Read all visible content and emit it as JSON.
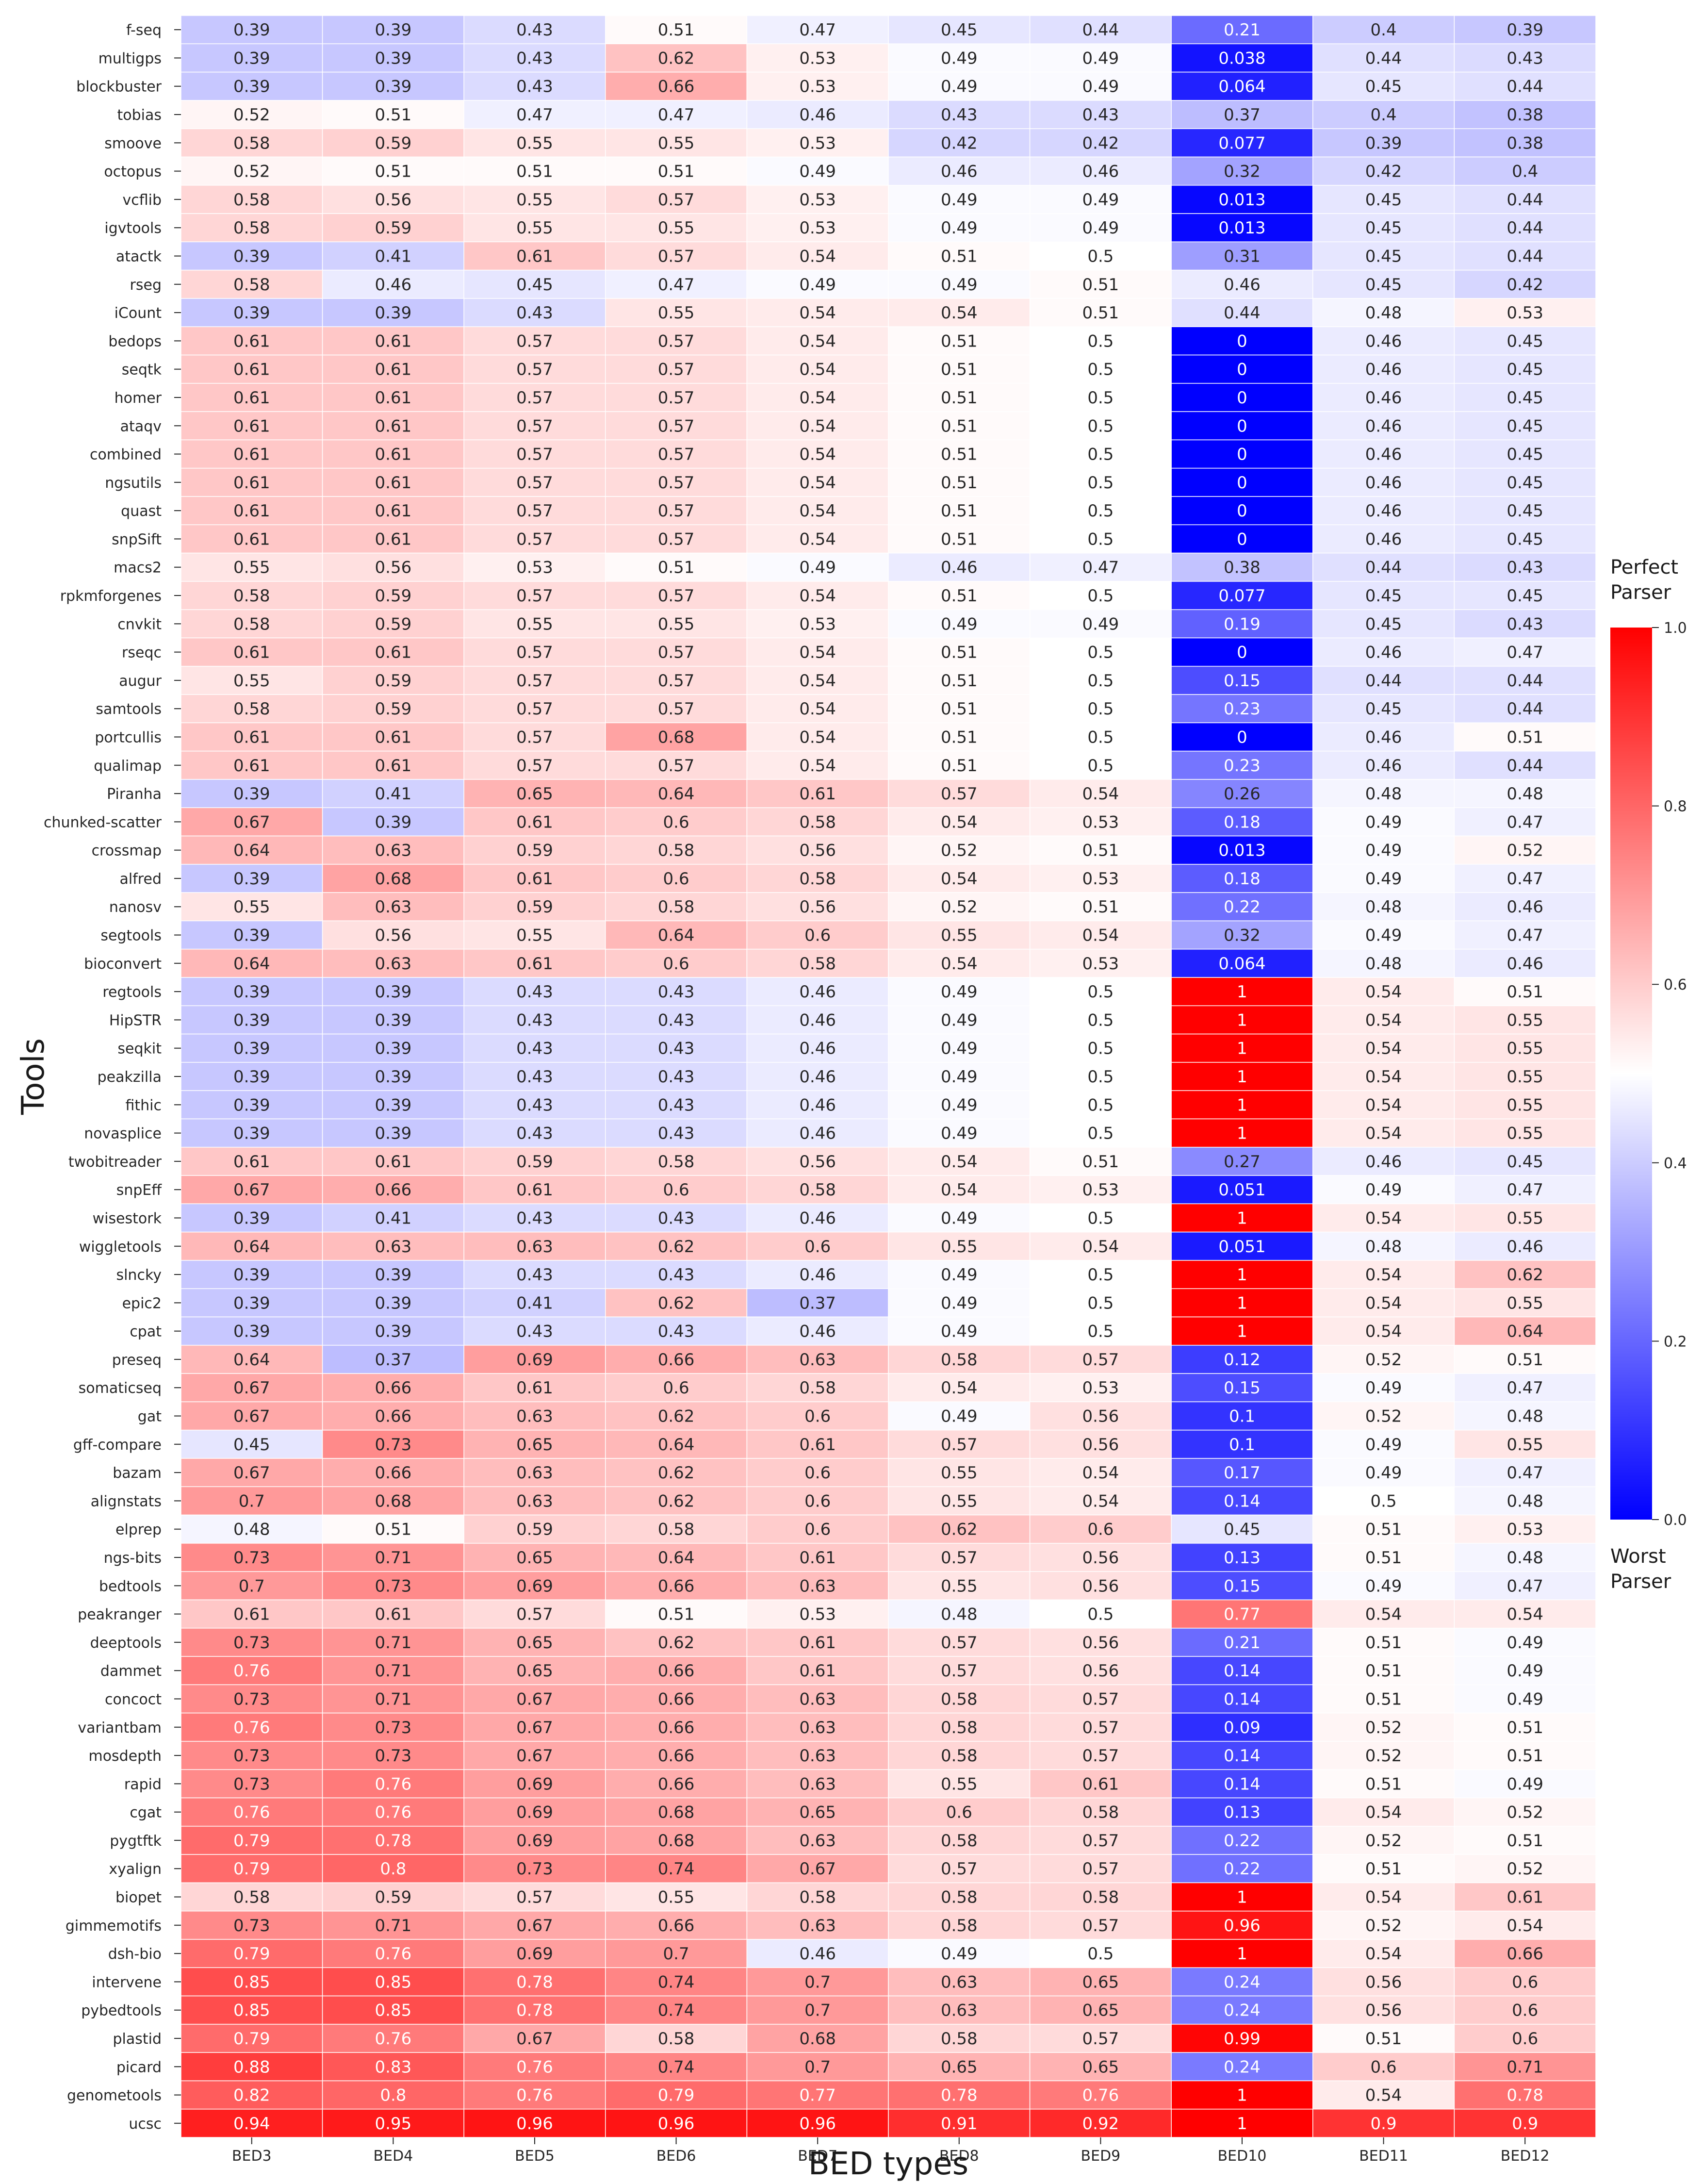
{
  "chart_data": {
    "type": "heatmap",
    "xlabel": "BED types",
    "ylabel": "Tools",
    "columns": [
      "BED3",
      "BED4",
      "BED5",
      "BED6",
      "BED7",
      "BED8",
      "BED9",
      "BED10",
      "BED11",
      "BED12"
    ],
    "rows": [
      "f-seq",
      "multigps",
      "blockbuster",
      "tobias",
      "smoove",
      "octopus",
      "vcflib",
      "igvtools",
      "atactk",
      "rseg",
      "iCount",
      "bedops",
      "seqtk",
      "homer",
      "ataqv",
      "combined",
      "ngsutils",
      "quast",
      "snpSift",
      "macs2",
      "rpkmforgenes",
      "cnvkit",
      "rseqc",
      "augur",
      "samtools",
      "portcullis",
      "qualimap",
      "Piranha",
      "chunked-scatter",
      "crossmap",
      "alfred",
      "nanosv",
      "segtools",
      "bioconvert",
      "regtools",
      "HipSTR",
      "seqkit",
      "peakzilla",
      "fithic",
      "novasplice",
      "twobitreader",
      "snpEff",
      "wisestork",
      "wiggletools",
      "slncky",
      "epic2",
      "cpat",
      "preseq",
      "somaticseq",
      "gat",
      "gff-compare",
      "bazam",
      "alignstats",
      "elprep",
      "ngs-bits",
      "bedtools",
      "peakranger",
      "deeptools",
      "dammet",
      "concoct",
      "variantbam",
      "mosdepth",
      "rapid",
      "cgat",
      "pygtftk",
      "xyalign",
      "biopet",
      "gimmemotifs",
      "dsh-bio",
      "intervene",
      "pybedtools",
      "plastid",
      "picard",
      "genometools",
      "ucsc"
    ],
    "values": [
      [
        0.39,
        0.39,
        0.43,
        0.51,
        0.47,
        0.45,
        0.44,
        0.21,
        0.4,
        0.39
      ],
      [
        0.39,
        0.39,
        0.43,
        0.62,
        0.53,
        0.49,
        0.49,
        0.038,
        0.44,
        0.43
      ],
      [
        0.39,
        0.39,
        0.43,
        0.66,
        0.53,
        0.49,
        0.49,
        0.064,
        0.45,
        0.44
      ],
      [
        0.52,
        0.51,
        0.47,
        0.47,
        0.46,
        0.43,
        0.43,
        0.37,
        0.4,
        0.38
      ],
      [
        0.58,
        0.59,
        0.55,
        0.55,
        0.53,
        0.42,
        0.42,
        0.077,
        0.39,
        0.38
      ],
      [
        0.52,
        0.51,
        0.51,
        0.51,
        0.49,
        0.46,
        0.46,
        0.32,
        0.42,
        0.4
      ],
      [
        0.58,
        0.56,
        0.55,
        0.57,
        0.53,
        0.49,
        0.49,
        0.013,
        0.45,
        0.44
      ],
      [
        0.58,
        0.59,
        0.55,
        0.55,
        0.53,
        0.49,
        0.49,
        0.013,
        0.45,
        0.44
      ],
      [
        0.39,
        0.41,
        0.61,
        0.57,
        0.54,
        0.51,
        0.5,
        0.31,
        0.45,
        0.44
      ],
      [
        0.58,
        0.46,
        0.45,
        0.47,
        0.49,
        0.49,
        0.51,
        0.46,
        0.45,
        0.42
      ],
      [
        0.39,
        0.39,
        0.43,
        0.55,
        0.54,
        0.54,
        0.51,
        0.44,
        0.48,
        0.53
      ],
      [
        0.61,
        0.61,
        0.57,
        0.57,
        0.54,
        0.51,
        0.5,
        0,
        0.46,
        0.45
      ],
      [
        0.61,
        0.61,
        0.57,
        0.57,
        0.54,
        0.51,
        0.5,
        0,
        0.46,
        0.45
      ],
      [
        0.61,
        0.61,
        0.57,
        0.57,
        0.54,
        0.51,
        0.5,
        0,
        0.46,
        0.45
      ],
      [
        0.61,
        0.61,
        0.57,
        0.57,
        0.54,
        0.51,
        0.5,
        0,
        0.46,
        0.45
      ],
      [
        0.61,
        0.61,
        0.57,
        0.57,
        0.54,
        0.51,
        0.5,
        0,
        0.46,
        0.45
      ],
      [
        0.61,
        0.61,
        0.57,
        0.57,
        0.54,
        0.51,
        0.5,
        0,
        0.46,
        0.45
      ],
      [
        0.61,
        0.61,
        0.57,
        0.57,
        0.54,
        0.51,
        0.5,
        0,
        0.46,
        0.45
      ],
      [
        0.61,
        0.61,
        0.57,
        0.57,
        0.54,
        0.51,
        0.5,
        0,
        0.46,
        0.45
      ],
      [
        0.55,
        0.56,
        0.53,
        0.51,
        0.49,
        0.46,
        0.47,
        0.38,
        0.44,
        0.43
      ],
      [
        0.58,
        0.59,
        0.57,
        0.57,
        0.54,
        0.51,
        0.5,
        0.077,
        0.45,
        0.45
      ],
      [
        0.58,
        0.59,
        0.55,
        0.55,
        0.53,
        0.49,
        0.49,
        0.19,
        0.45,
        0.43
      ],
      [
        0.61,
        0.61,
        0.57,
        0.57,
        0.54,
        0.51,
        0.5,
        0,
        0.46,
        0.47
      ],
      [
        0.55,
        0.59,
        0.57,
        0.57,
        0.54,
        0.51,
        0.5,
        0.15,
        0.44,
        0.44
      ],
      [
        0.58,
        0.59,
        0.57,
        0.57,
        0.54,
        0.51,
        0.5,
        0.23,
        0.45,
        0.44
      ],
      [
        0.61,
        0.61,
        0.57,
        0.68,
        0.54,
        0.51,
        0.5,
        0,
        0.46,
        0.51
      ],
      [
        0.61,
        0.61,
        0.57,
        0.57,
        0.54,
        0.51,
        0.5,
        0.23,
        0.46,
        0.44
      ],
      [
        0.39,
        0.41,
        0.65,
        0.64,
        0.61,
        0.57,
        0.54,
        0.26,
        0.48,
        0.48
      ],
      [
        0.67,
        0.39,
        0.61,
        0.6,
        0.58,
        0.54,
        0.53,
        0.18,
        0.49,
        0.47
      ],
      [
        0.64,
        0.63,
        0.59,
        0.58,
        0.56,
        0.52,
        0.51,
        0.013,
        0.49,
        0.52
      ],
      [
        0.39,
        0.68,
        0.61,
        0.6,
        0.58,
        0.54,
        0.53,
        0.18,
        0.49,
        0.47
      ],
      [
        0.55,
        0.63,
        0.59,
        0.58,
        0.56,
        0.52,
        0.51,
        0.22,
        0.48,
        0.46
      ],
      [
        0.39,
        0.56,
        0.55,
        0.64,
        0.6,
        0.55,
        0.54,
        0.32,
        0.49,
        0.47
      ],
      [
        0.64,
        0.63,
        0.61,
        0.6,
        0.58,
        0.54,
        0.53,
        0.064,
        0.48,
        0.46
      ],
      [
        0.39,
        0.39,
        0.43,
        0.43,
        0.46,
        0.49,
        0.5,
        1,
        0.54,
        0.51
      ],
      [
        0.39,
        0.39,
        0.43,
        0.43,
        0.46,
        0.49,
        0.5,
        1,
        0.54,
        0.55
      ],
      [
        0.39,
        0.39,
        0.43,
        0.43,
        0.46,
        0.49,
        0.5,
        1,
        0.54,
        0.55
      ],
      [
        0.39,
        0.39,
        0.43,
        0.43,
        0.46,
        0.49,
        0.5,
        1,
        0.54,
        0.55
      ],
      [
        0.39,
        0.39,
        0.43,
        0.43,
        0.46,
        0.49,
        0.5,
        1,
        0.54,
        0.55
      ],
      [
        0.39,
        0.39,
        0.43,
        0.43,
        0.46,
        0.49,
        0.5,
        1,
        0.54,
        0.55
      ],
      [
        0.61,
        0.61,
        0.59,
        0.58,
        0.56,
        0.54,
        0.51,
        0.27,
        0.46,
        0.45
      ],
      [
        0.67,
        0.66,
        0.61,
        0.6,
        0.58,
        0.54,
        0.53,
        0.051,
        0.49,
        0.47
      ],
      [
        0.39,
        0.41,
        0.43,
        0.43,
        0.46,
        0.49,
        0.5,
        1,
        0.54,
        0.55
      ],
      [
        0.64,
        0.63,
        0.63,
        0.62,
        0.6,
        0.55,
        0.54,
        0.051,
        0.48,
        0.46
      ],
      [
        0.39,
        0.39,
        0.43,
        0.43,
        0.46,
        0.49,
        0.5,
        1,
        0.54,
        0.62
      ],
      [
        0.39,
        0.39,
        0.41,
        0.62,
        0.37,
        0.49,
        0.5,
        1,
        0.54,
        0.55
      ],
      [
        0.39,
        0.39,
        0.43,
        0.43,
        0.46,
        0.49,
        0.5,
        1,
        0.54,
        0.64
      ],
      [
        0.64,
        0.37,
        0.69,
        0.66,
        0.63,
        0.58,
        0.57,
        0.12,
        0.52,
        0.51
      ],
      [
        0.67,
        0.66,
        0.61,
        0.6,
        0.58,
        0.54,
        0.53,
        0.15,
        0.49,
        0.47
      ],
      [
        0.67,
        0.66,
        0.63,
        0.62,
        0.6,
        0.49,
        0.56,
        0.1,
        0.52,
        0.48
      ],
      [
        0.45,
        0.73,
        0.65,
        0.64,
        0.61,
        0.57,
        0.56,
        0.1,
        0.49,
        0.55
      ],
      [
        0.67,
        0.66,
        0.63,
        0.62,
        0.6,
        0.55,
        0.54,
        0.17,
        0.49,
        0.47
      ],
      [
        0.7,
        0.68,
        0.63,
        0.62,
        0.6,
        0.55,
        0.54,
        0.14,
        0.5,
        0.48
      ],
      [
        0.48,
        0.51,
        0.59,
        0.58,
        0.6,
        0.62,
        0.6,
        0.45,
        0.51,
        0.53
      ],
      [
        0.73,
        0.71,
        0.65,
        0.64,
        0.61,
        0.57,
        0.56,
        0.13,
        0.51,
        0.48
      ],
      [
        0.7,
        0.73,
        0.69,
        0.66,
        0.63,
        0.55,
        0.56,
        0.15,
        0.49,
        0.47
      ],
      [
        0.61,
        0.61,
        0.57,
        0.51,
        0.53,
        0.48,
        0.5,
        0.77,
        0.54,
        0.54
      ],
      [
        0.73,
        0.71,
        0.65,
        0.62,
        0.61,
        0.57,
        0.56,
        0.21,
        0.51,
        0.49
      ],
      [
        0.76,
        0.71,
        0.65,
        0.66,
        0.61,
        0.57,
        0.56,
        0.14,
        0.51,
        0.49
      ],
      [
        0.73,
        0.71,
        0.67,
        0.66,
        0.63,
        0.58,
        0.57,
        0.14,
        0.51,
        0.49
      ],
      [
        0.76,
        0.73,
        0.67,
        0.66,
        0.63,
        0.58,
        0.57,
        0.09,
        0.52,
        0.51
      ],
      [
        0.73,
        0.73,
        0.67,
        0.66,
        0.63,
        0.58,
        0.57,
        0.14,
        0.52,
        0.51
      ],
      [
        0.73,
        0.76,
        0.69,
        0.66,
        0.63,
        0.55,
        0.61,
        0.14,
        0.51,
        0.49
      ],
      [
        0.76,
        0.76,
        0.69,
        0.68,
        0.65,
        0.6,
        0.58,
        0.13,
        0.54,
        0.52
      ],
      [
        0.79,
        0.78,
        0.69,
        0.68,
        0.63,
        0.58,
        0.57,
        0.22,
        0.52,
        0.51
      ],
      [
        0.79,
        0.8,
        0.73,
        0.74,
        0.67,
        0.57,
        0.57,
        0.22,
        0.51,
        0.52
      ],
      [
        0.58,
        0.59,
        0.57,
        0.55,
        0.58,
        0.58,
        0.58,
        1,
        0.54,
        0.61
      ],
      [
        0.73,
        0.71,
        0.67,
        0.66,
        0.63,
        0.58,
        0.57,
        0.96,
        0.52,
        0.54
      ],
      [
        0.79,
        0.76,
        0.69,
        0.7,
        0.46,
        0.49,
        0.5,
        1,
        0.54,
        0.66
      ],
      [
        0.85,
        0.85,
        0.78,
        0.74,
        0.7,
        0.63,
        0.65,
        0.24,
        0.56,
        0.6
      ],
      [
        0.85,
        0.85,
        0.78,
        0.74,
        0.7,
        0.63,
        0.65,
        0.24,
        0.56,
        0.6
      ],
      [
        0.79,
        0.76,
        0.67,
        0.58,
        0.68,
        0.58,
        0.57,
        0.99,
        0.51,
        0.6
      ],
      [
        0.88,
        0.83,
        0.76,
        0.74,
        0.7,
        0.65,
        0.65,
        0.24,
        0.6,
        0.71
      ],
      [
        0.82,
        0.8,
        0.76,
        0.79,
        0.77,
        0.78,
        0.76,
        1,
        0.54,
        0.78
      ],
      [
        0.94,
        0.95,
        0.96,
        0.96,
        0.96,
        0.91,
        0.92,
        1,
        0.9,
        0.9
      ]
    ],
    "colorbar": {
      "range": [
        0,
        1
      ],
      "ticks": [
        "0.0",
        "0.2",
        "0.4",
        "0.6",
        "0.8",
        "1.0"
      ],
      "colormap": "bwr",
      "low_color": "#0000ff",
      "mid_color": "#ffffff",
      "high_color": "#ff0000",
      "top_annotation": [
        "Perfect",
        "Parser"
      ],
      "bottom_annotation": [
        "Worst",
        "Parser"
      ]
    }
  }
}
